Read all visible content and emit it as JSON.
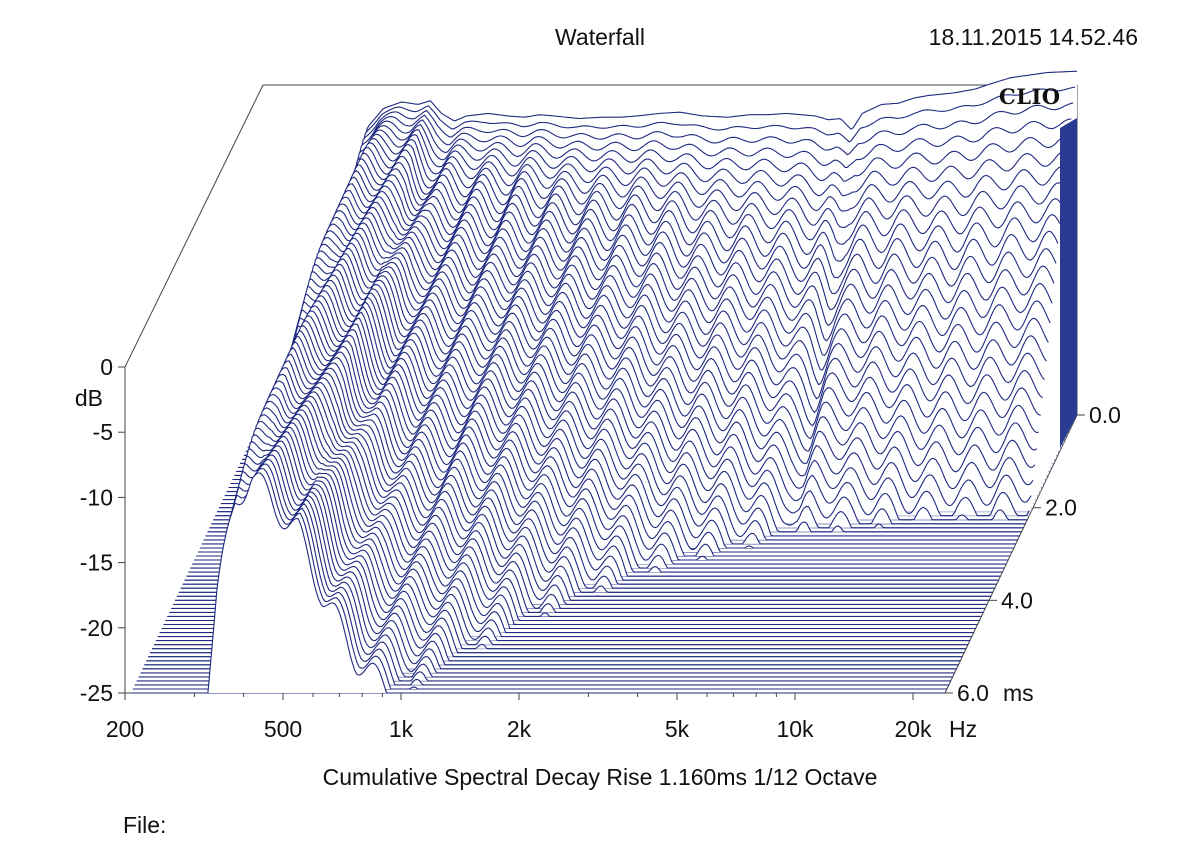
{
  "header": {
    "title": "Waterfall",
    "timestamp": "18.11.2015 14.52.46",
    "logo": "CLIO"
  },
  "footer": {
    "caption": "Cumulative Spectral Decay   Rise 1.160ms   1/12 Octave",
    "file_label": "File:"
  },
  "colors": {
    "trace": "#1f2a80",
    "fill": "#2b3a93",
    "frame": "#444444"
  },
  "chart_data": {
    "type": "waterfall",
    "title": "Waterfall",
    "xlabel": "Hz",
    "ylabel": "dB",
    "zlabel": "ms",
    "x_scale": "log",
    "xlim": [
      200,
      30000
    ],
    "ylim": [
      -25,
      0
    ],
    "zlim": [
      0,
      6
    ],
    "x_ticks": [
      {
        "value": 200,
        "label": "200"
      },
      {
        "value": 500,
        "label": "500"
      },
      {
        "value": 1000,
        "label": "1k"
      },
      {
        "value": 2000,
        "label": "2k"
      },
      {
        "value": 5000,
        "label": "5k"
      },
      {
        "value": 10000,
        "label": "10k"
      },
      {
        "value": 20000,
        "label": "20k"
      }
    ],
    "x_unit_label": "Hz",
    "y_ticks": [
      {
        "value": 0,
        "label": "0"
      },
      {
        "value": -5,
        "label": "-5"
      },
      {
        "value": -10,
        "label": "-10"
      },
      {
        "value": -15,
        "label": "-15"
      },
      {
        "value": -20,
        "label": "-20"
      },
      {
        "value": -25,
        "label": "-25"
      }
    ],
    "y_unit_label": "dB",
    "z_ticks": [
      {
        "value": 0,
        "label": "0.0"
      },
      {
        "value": 2,
        "label": "2.0"
      },
      {
        "value": 4,
        "label": "4.0"
      },
      {
        "value": 6,
        "label": "6.0"
      }
    ],
    "z_unit_label": "ms",
    "slice_count": 70,
    "initial_response": {
      "x": [
        200,
        300,
        340,
        380,
        420,
        470,
        520,
        560,
        600,
        650,
        700,
        800,
        900,
        1000,
        1100,
        1200,
        1400,
        1600,
        1800,
        2000,
        2300,
        2600,
        3000,
        3500,
        4000,
        4500,
        5000,
        5500,
        6000,
        6500,
        7000,
        7500,
        8000,
        9000,
        10000,
        11000,
        12000,
        14000,
        16000,
        18000,
        20000,
        25000,
        30000
      ],
      "y": [
        -25,
        -25,
        -10,
        -2.5,
        -1.0,
        -0.5,
        -0.7,
        -0.4,
        -1.4,
        -2.0,
        -1.6,
        -1.4,
        -1.6,
        -1.7,
        -1.5,
        -1.6,
        -1.8,
        -1.7,
        -1.7,
        -1.6,
        -1.4,
        -1.3,
        -1.6,
        -1.7,
        -1.5,
        -1.5,
        -1.4,
        -1.5,
        -1.6,
        -1.9,
        -1.8,
        -2.7,
        -1.4,
        -0.7,
        -0.6,
        -0.2,
        0.0,
        0.2,
        0.5,
        1.0,
        1.4,
        1.8,
        1.9
      ]
    },
    "decay_rate_db_per_ms": [
      {
        "x": 300,
        "rate": 1.2
      },
      {
        "x": 420,
        "rate": 1.2
      },
      {
        "x": 600,
        "rate": 2.2
      },
      {
        "x": 800,
        "rate": 3.5
      },
      {
        "x": 1400,
        "rate": 4.5
      },
      {
        "x": 2000,
        "rate": 5.5
      },
      {
        "x": 5000,
        "rate": 8.0
      },
      {
        "x": 10000,
        "rate": 10.0
      },
      {
        "x": 20000,
        "rate": 12.0
      }
    ]
  }
}
